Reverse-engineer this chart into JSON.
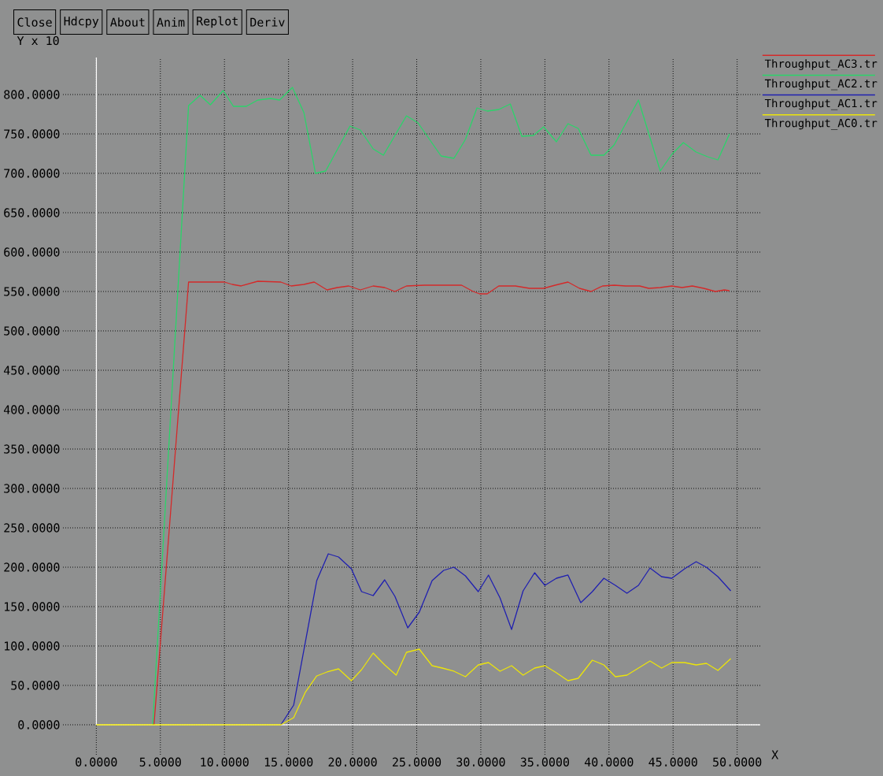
{
  "chart_data": {
    "type": "line",
    "xlabel": "X",
    "ylabel": "Y x 10",
    "xlim": [
      -2.6,
      51.8
    ],
    "ylim": [
      -38,
      847
    ],
    "xticks": [
      {
        "value": 0,
        "label": "0.0000"
      },
      {
        "value": 5,
        "label": "5.0000"
      },
      {
        "value": 10,
        "label": "10.0000"
      },
      {
        "value": 15,
        "label": "15.0000"
      },
      {
        "value": 20,
        "label": "20.0000"
      },
      {
        "value": 25,
        "label": "25.0000"
      },
      {
        "value": 30,
        "label": "30.0000"
      },
      {
        "value": 35,
        "label": "35.0000"
      },
      {
        "value": 40,
        "label": "40.0000"
      },
      {
        "value": 45,
        "label": "45.0000"
      },
      {
        "value": 50,
        "label": "50.0000"
      }
    ],
    "yticks": [
      {
        "value": 0,
        "label": "0.0000"
      },
      {
        "value": 50,
        "label": "50.0000"
      },
      {
        "value": 100,
        "label": "100.0000"
      },
      {
        "value": 150,
        "label": "150.0000"
      },
      {
        "value": 200,
        "label": "200.0000"
      },
      {
        "value": 250,
        "label": "250.0000"
      },
      {
        "value": 300,
        "label": "300.0000"
      },
      {
        "value": 350,
        "label": "350.0000"
      },
      {
        "value": 400,
        "label": "400.0000"
      },
      {
        "value": 450,
        "label": "450.0000"
      },
      {
        "value": 500,
        "label": "500.0000"
      },
      {
        "value": 550,
        "label": "550.0000"
      },
      {
        "value": 600,
        "label": "600.0000"
      },
      {
        "value": 650,
        "label": "650.0000"
      },
      {
        "value": 700,
        "label": "700.0000"
      },
      {
        "value": 750,
        "label": "750.0000"
      },
      {
        "value": 800,
        "label": "800.0000"
      }
    ],
    "grid": true,
    "legend": "top right",
    "annotations": [
      "Close",
      "Hdcpy",
      "About",
      "Anim",
      "Replot",
      "Deriv"
    ],
    "series": [
      {
        "name": "Throughput_AC3.tr",
        "color": "#d42a2a",
        "x": [
          4.5,
          7.2,
          10.0,
          10.6,
          11.3,
          12.6,
          14.4,
          15.2,
          16.2,
          17.0,
          18.0,
          18.8,
          19.7,
          20.6,
          21.6,
          22.5,
          23.3,
          24.2,
          25.6,
          27.3,
          28.5,
          29.4,
          29.9,
          30.5,
          31.4,
          32.7,
          33.8,
          34.9,
          35.8,
          36.8,
          37.7,
          38.6,
          39.5,
          40.4,
          41.3,
          42.4,
          43.1,
          44.0,
          44.9,
          45.7,
          46.5,
          47.4,
          48.3,
          49.0,
          49.4
        ],
        "values": [
          0,
          562,
          562,
          559,
          557,
          563,
          562,
          557,
          559,
          562,
          552,
          555,
          557,
          552,
          557,
          555,
          550,
          557,
          558,
          558,
          558,
          550,
          547,
          547,
          557,
          557,
          554,
          554,
          558,
          562,
          554,
          550,
          557,
          558,
          557,
          557,
          554,
          555,
          557,
          555,
          557,
          554,
          550,
          552,
          551
        ]
      },
      {
        "name": "Throughput_AC2.tr",
        "color": "#2bd46a",
        "x": [
          4.4,
          7.2,
          8.1,
          8.9,
          9.9,
          10.7,
          11.7,
          12.6,
          13.6,
          14.3,
          15.3,
          16.2,
          17.1,
          17.9,
          19.8,
          20.6,
          21.6,
          22.4,
          24.2,
          25.1,
          26.0,
          26.9,
          27.9,
          28.8,
          29.7,
          30.5,
          31.4,
          32.3,
          33.2,
          34.1,
          34.9,
          35.9,
          36.8,
          37.6,
          38.6,
          39.6,
          40.4,
          42.3,
          44.0,
          44.9,
          45.8,
          46.8,
          47.7,
          48.5,
          49.4
        ],
        "values": [
          0,
          786,
          799,
          787,
          805,
          785,
          785,
          793,
          795,
          793,
          809,
          777,
          700,
          703,
          760,
          755,
          731,
          723,
          773,
          764,
          743,
          722,
          719,
          743,
          783,
          779,
          781,
          788,
          747,
          748,
          759,
          740,
          763,
          757,
          723,
          723,
          736,
          793,
          703,
          724,
          739,
          727,
          721,
          717,
          750
        ]
      },
      {
        "name": "Throughput_AC1.tr",
        "color": "#2020b0",
        "x": [
          14.4,
          15.4,
          17.2,
          18.1,
          18.9,
          19.9,
          20.7,
          21.6,
          22.5,
          23.3,
          24.3,
          25.2,
          26.2,
          27.1,
          27.9,
          28.8,
          29.8,
          30.6,
          31.5,
          32.4,
          33.3,
          34.2,
          35.0,
          35.9,
          36.8,
          37.8,
          38.7,
          39.6,
          40.5,
          41.4,
          42.3,
          43.2,
          44.1,
          44.9,
          45.9,
          46.8,
          47.6,
          48.5,
          49.5
        ],
        "values": [
          0,
          25,
          183,
          217,
          213,
          198,
          169,
          164,
          184,
          163,
          123,
          143,
          183,
          196,
          200,
          189,
          169,
          190,
          161,
          121,
          170,
          193,
          177,
          186,
          190,
          155,
          169,
          186,
          177,
          167,
          177,
          199,
          188,
          186,
          198,
          207,
          200,
          188,
          170
        ]
      },
      {
        "name": "Throughput_AC0.tr",
        "color": "#ebe40a",
        "x": [
          0,
          14.4,
          15.4,
          16.3,
          17.2,
          18.0,
          18.9,
          19.9,
          20.7,
          21.6,
          22.5,
          23.4,
          24.2,
          24.7,
          25.2,
          26.2,
          27.0,
          27.9,
          28.8,
          29.8,
          30.6,
          31.5,
          32.4,
          33.3,
          34.2,
          35.0,
          35.9,
          36.8,
          37.6,
          38.7,
          39.6,
          40.5,
          41.4,
          42.3,
          43.2,
          44.1,
          44.9,
          45.9,
          46.8,
          47.6,
          48.5,
          49.5
        ],
        "values": [
          0,
          0,
          9,
          41,
          62,
          67,
          71,
          56,
          70,
          91,
          76,
          63,
          92,
          94,
          96,
          75,
          72,
          68,
          61,
          76,
          79,
          68,
          75,
          63,
          72,
          75,
          66,
          56,
          59,
          82,
          76,
          61,
          63,
          72,
          81,
          72,
          79,
          79,
          76,
          78,
          69,
          84
        ]
      }
    ]
  }
}
